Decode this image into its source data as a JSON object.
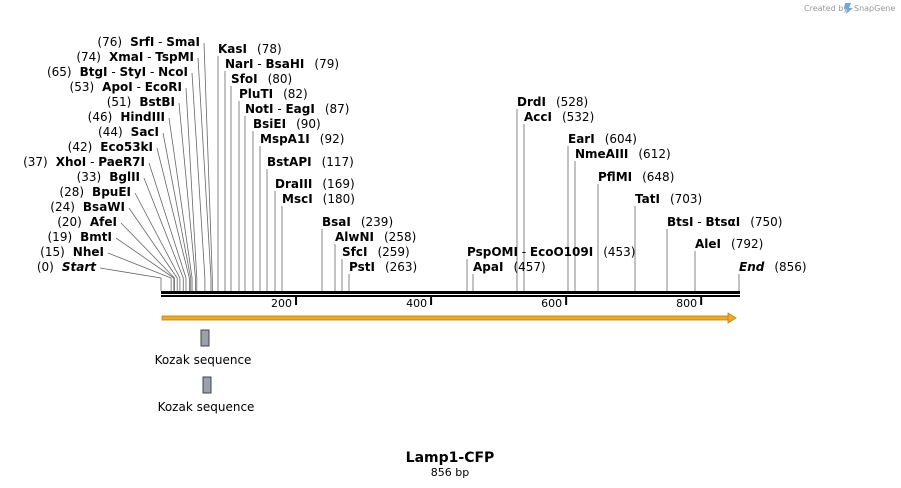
{
  "credit": {
    "prefix": "Created by",
    "brand": "SnapGene"
  },
  "title": "Lamp1-CFP",
  "length_label": "856 bp",
  "sequence_length": 856,
  "ruler_ticks": [
    "200",
    "400",
    "600",
    "800"
  ],
  "ruler_tick_values": [
    200,
    400,
    600,
    800
  ],
  "colors": {
    "arrow_fill": "#F5A623",
    "arrow_stroke": "#B8860B",
    "feature_box": "#9aa0ad",
    "leader": "#666666"
  },
  "features": [
    {
      "label": "Kozak sequence",
      "start": 60,
      "end": 71
    },
    {
      "label": "Kozak sequence",
      "start": 63,
      "end": 74
    }
  ],
  "sites": [
    {
      "pos": "(76)",
      "name": "SrfI",
      "name2": "SmaI",
      "bp": 76
    },
    {
      "pos": "(74)",
      "name": "XmaI",
      "name2": "TspMI",
      "bp": 74
    },
    {
      "pos": "(65)",
      "name": "BtgI",
      "name2": "StyI",
      "name3": "NcoI",
      "bp": 65
    },
    {
      "pos": "(53)",
      "name": "ApoI",
      "name2": "EcoRI",
      "bp": 53
    },
    {
      "pos": "(51)",
      "name": "BstBI",
      "bp": 51
    },
    {
      "pos": "(46)",
      "name": "HindIII",
      "bp": 46
    },
    {
      "pos": "(44)",
      "name": "SacI",
      "bp": 44
    },
    {
      "pos": "(42)",
      "name": "Eco53kI",
      "bp": 42
    },
    {
      "pos": "(37)",
      "name": "XhoI",
      "name2": "PaeR7I",
      "bp": 37
    },
    {
      "pos": "(33)",
      "name": "BglII",
      "bp": 33
    },
    {
      "pos": "(28)",
      "name": "BpuEI",
      "bp": 28
    },
    {
      "pos": "(24)",
      "name": "BsaWI",
      "bp": 24
    },
    {
      "pos": "(20)",
      "name": "AfeI",
      "bp": 20
    },
    {
      "pos": "(19)",
      "name": "BmtI",
      "bp": 19
    },
    {
      "pos": "(15)",
      "name": "NheI",
      "bp": 15
    },
    {
      "pos": "(0)",
      "name": "Start",
      "bp": 0
    },
    {
      "pos": "(78)",
      "name": "KasI",
      "bp": 78
    },
    {
      "pos": "(79)",
      "name": "NarI",
      "name2": "BsaHI",
      "bp": 79
    },
    {
      "pos": "(80)",
      "name": "SfoI",
      "bp": 80
    },
    {
      "pos": "(82)",
      "name": "PluTI",
      "bp": 82
    },
    {
      "pos": "(87)",
      "name": "NotI",
      "name2": "EagI",
      "bp": 87
    },
    {
      "pos": "(90)",
      "name": "BsiEI",
      "bp": 90
    },
    {
      "pos": "(92)",
      "name": "MspA1I",
      "bp": 92
    },
    {
      "pos": "(117)",
      "name": "BstAPI",
      "bp": 117
    },
    {
      "pos": "(169)",
      "name": "DraIII",
      "bp": 169
    },
    {
      "pos": "(180)",
      "name": "MscI",
      "bp": 180
    },
    {
      "pos": "(239)",
      "name": "BsaI",
      "bp": 239
    },
    {
      "pos": "(258)",
      "name": "AlwNI",
      "bp": 258
    },
    {
      "pos": "(259)",
      "name": "SfcI",
      "bp": 259
    },
    {
      "pos": "(263)",
      "name": "PstI",
      "bp": 263
    },
    {
      "pos": "(453)",
      "name": "PspOMI",
      "name2": "EcoO109I",
      "bp": 453
    },
    {
      "pos": "(457)",
      "name": "ApaI",
      "bp": 457
    },
    {
      "pos": "(528)",
      "name": "DrdI",
      "bp": 528
    },
    {
      "pos": "(532)",
      "name": "AccI",
      "bp": 532
    },
    {
      "pos": "(604)",
      "name": "EarI",
      "bp": 604
    },
    {
      "pos": "(612)",
      "name": "NmeAIII",
      "bp": 612
    },
    {
      "pos": "(648)",
      "name": "PflMI",
      "bp": 648
    },
    {
      "pos": "(703)",
      "name": "TatI",
      "bp": 703
    },
    {
      "pos": "(750)",
      "name": "BtsI",
      "name2": "BtsαI",
      "bp": 750
    },
    {
      "pos": "(792)",
      "name": "AleI",
      "bp": 792
    },
    {
      "pos": "(856)",
      "name": "End",
      "bp": 856
    }
  ]
}
